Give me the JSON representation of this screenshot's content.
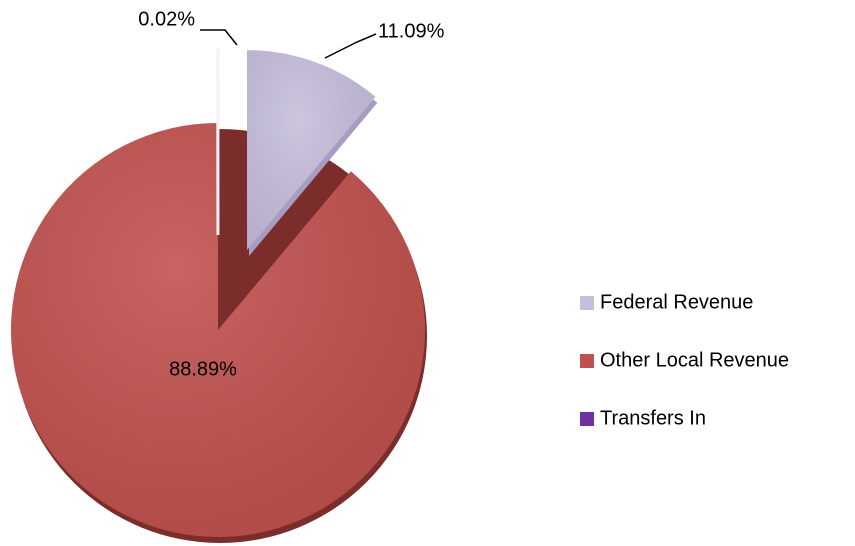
{
  "chart_data": {
    "type": "pie",
    "categories": [
      "Federal Revenue",
      "Other Local Revenue",
      "Transfers In"
    ],
    "values": [
      11.09,
      88.89,
      0.02
    ],
    "value_labels": [
      "11.09%",
      "88.89%",
      "0.02%"
    ],
    "colors": [
      "#c6bedb",
      "#c0504d",
      "#7030a0"
    ]
  }
}
